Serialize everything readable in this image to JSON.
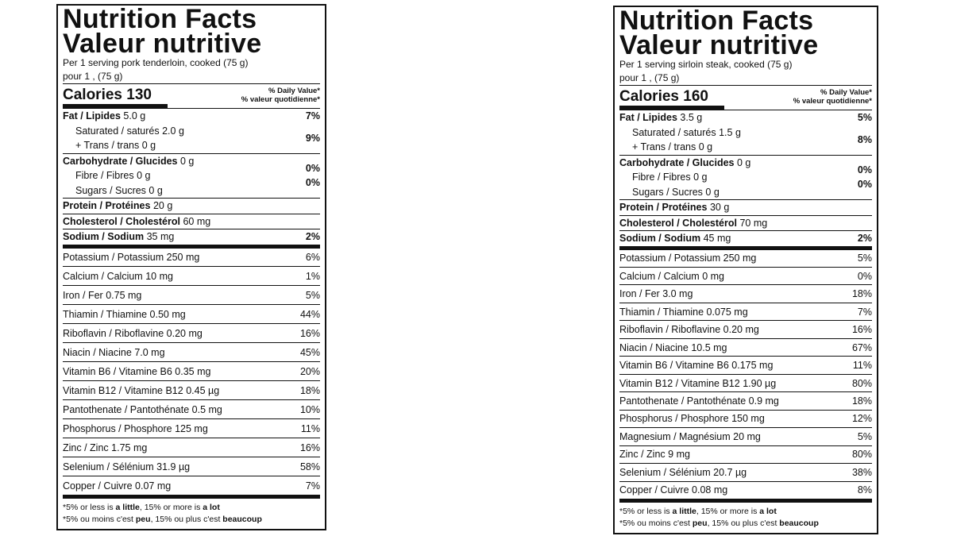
{
  "labels": [
    {
      "title": [
        "Nutrition Facts",
        "Valeur nutritive"
      ],
      "serving": [
        "Per 1 serving pork tenderloin, cooked (75 g)",
        "pour 1 , (75 g)"
      ],
      "calories": "Calories 130",
      "dv_header": [
        "% Daily Value*",
        "% valeur quotidienne*"
      ],
      "fat": {
        "name": "Fat / Lipides",
        "amount": "5.0 g",
        "dv": "7%"
      },
      "saturated": {
        "name": "Saturated / saturés",
        "amount": "2.0 g"
      },
      "trans": {
        "name": "+ Trans / trans",
        "amount": "0 g"
      },
      "sat_trans_dv": "9%",
      "carbohydrate": {
        "name": "Carbohydrate / Glucides",
        "amount": "0 g"
      },
      "fibre": {
        "name": "Fibre / Fibres",
        "amount": "0 g",
        "dv": "0%"
      },
      "sugars": {
        "name": "Sugars / Sucres",
        "amount": "0 g",
        "dv": "0%"
      },
      "protein": {
        "name": "Protein / Protéines",
        "amount": "20 g"
      },
      "cholesterol": {
        "name": "Cholesterol / Cholestérol",
        "amount": "60 mg"
      },
      "sodium": {
        "name": "Sodium / Sodium",
        "amount": "35 mg",
        "dv": "2%"
      },
      "micronutrients": [
        {
          "name": "Potassium / Potassium",
          "amount": "250 mg",
          "dv": "6%"
        },
        {
          "name": "Calcium / Calcium",
          "amount": "10 mg",
          "dv": "1%"
        },
        {
          "name": "Iron / Fer",
          "amount": "0.75 mg",
          "dv": "5%"
        },
        {
          "name": "Thiamin / Thiamine",
          "amount": "0.50 mg",
          "dv": "44%"
        },
        {
          "name": "Riboflavin / Riboflavine",
          "amount": "0.20 mg",
          "dv": "16%"
        },
        {
          "name": "Niacin / Niacine",
          "amount": "7.0 mg",
          "dv": "45%"
        },
        {
          "name": "Vitamin B6 / Vitamine B6",
          "amount": "0.35 mg",
          "dv": "20%"
        },
        {
          "name": "Vitamin B12 / Vitamine B12",
          "amount": "0.45 µg",
          "dv": "18%"
        },
        {
          "name": "Pantothenate / Pantothénate",
          "amount": "0.5 mg",
          "dv": "10%"
        },
        {
          "name": "Phosphorus / Phosphore",
          "amount": "125 mg",
          "dv": "11%"
        },
        {
          "name": "Zinc / Zinc",
          "amount": "1.75 mg",
          "dv": "16%"
        },
        {
          "name": "Selenium / Sélénium",
          "amount": "31.9 µg",
          "dv": "58%"
        },
        {
          "name": "Copper / Cuivre",
          "amount": "0.07 mg",
          "dv": "7%"
        }
      ],
      "footnote": [
        [
          "*5% or less is ",
          "a little",
          ", 15% or more is ",
          "a lot"
        ],
        [
          "*5% ou moins c'est ",
          "peu",
          ", 15% ou plus c'est ",
          "beaucoup"
        ]
      ]
    },
    {
      "title": [
        "Nutrition Facts",
        "Valeur nutritive"
      ],
      "serving": [
        "Per 1 serving sirloin steak, cooked (75 g)",
        "pour 1 , (75 g)"
      ],
      "calories": "Calories 160",
      "dv_header": [
        "% Daily Value*",
        "% valeur quotidienne*"
      ],
      "fat": {
        "name": "Fat / Lipides",
        "amount": "3.5 g",
        "dv": "5%"
      },
      "saturated": {
        "name": "Saturated / saturés",
        "amount": "1.5 g"
      },
      "trans": {
        "name": "+ Trans / trans",
        "amount": "0 g"
      },
      "sat_trans_dv": "8%",
      "carbohydrate": {
        "name": "Carbohydrate / Glucides",
        "amount": "0 g"
      },
      "fibre": {
        "name": "Fibre / Fibres",
        "amount": "0 g",
        "dv": "0%"
      },
      "sugars": {
        "name": "Sugars / Sucres",
        "amount": "0 g",
        "dv": "0%"
      },
      "protein": {
        "name": "Protein / Protéines",
        "amount": "30 g"
      },
      "cholesterol": {
        "name": "Cholesterol / Cholestérol",
        "amount": "70 mg"
      },
      "sodium": {
        "name": "Sodium / Sodium",
        "amount": "45 mg",
        "dv": "2%"
      },
      "micronutrients": [
        {
          "name": "Potassium / Potassium",
          "amount": "250 mg",
          "dv": "5%"
        },
        {
          "name": "Calcium / Calcium",
          "amount": "0 mg",
          "dv": "0%"
        },
        {
          "name": "Iron / Fer",
          "amount": "3.0 mg",
          "dv": "18%"
        },
        {
          "name": "Thiamin / Thiamine",
          "amount": "0.075 mg",
          "dv": "7%"
        },
        {
          "name": "Riboflavin / Riboflavine",
          "amount": "0.20 mg",
          "dv": "16%"
        },
        {
          "name": "Niacin / Niacine",
          "amount": "10.5 mg",
          "dv": "67%"
        },
        {
          "name": "Vitamin B6 / Vitamine B6",
          "amount": "0.175 mg",
          "dv": "11%"
        },
        {
          "name": "Vitamin B12 / Vitamine B12",
          "amount": "1.90 µg",
          "dv": "80%"
        },
        {
          "name": "Pantothenate / Pantothénate",
          "amount": "0.9 mg",
          "dv": "18%"
        },
        {
          "name": "Phosphorus / Phosphore",
          "amount": "150 mg",
          "dv": "12%"
        },
        {
          "name": "Magnesium / Magnésium",
          "amount": "20 mg",
          "dv": "5%"
        },
        {
          "name": "Zinc / Zinc",
          "amount": "9 mg",
          "dv": "80%"
        },
        {
          "name": "Selenium / Sélénium",
          "amount": "20.7 µg",
          "dv": "38%"
        },
        {
          "name": "Copper / Cuivre",
          "amount": "0.08 mg",
          "dv": "8%"
        }
      ],
      "footnote": [
        [
          "*5% or less is ",
          "a little",
          ", 15% or more is ",
          "a lot"
        ],
        [
          "*5% ou moins c'est ",
          "peu",
          ", 15% ou plus c'est ",
          "beaucoup"
        ]
      ]
    }
  ]
}
